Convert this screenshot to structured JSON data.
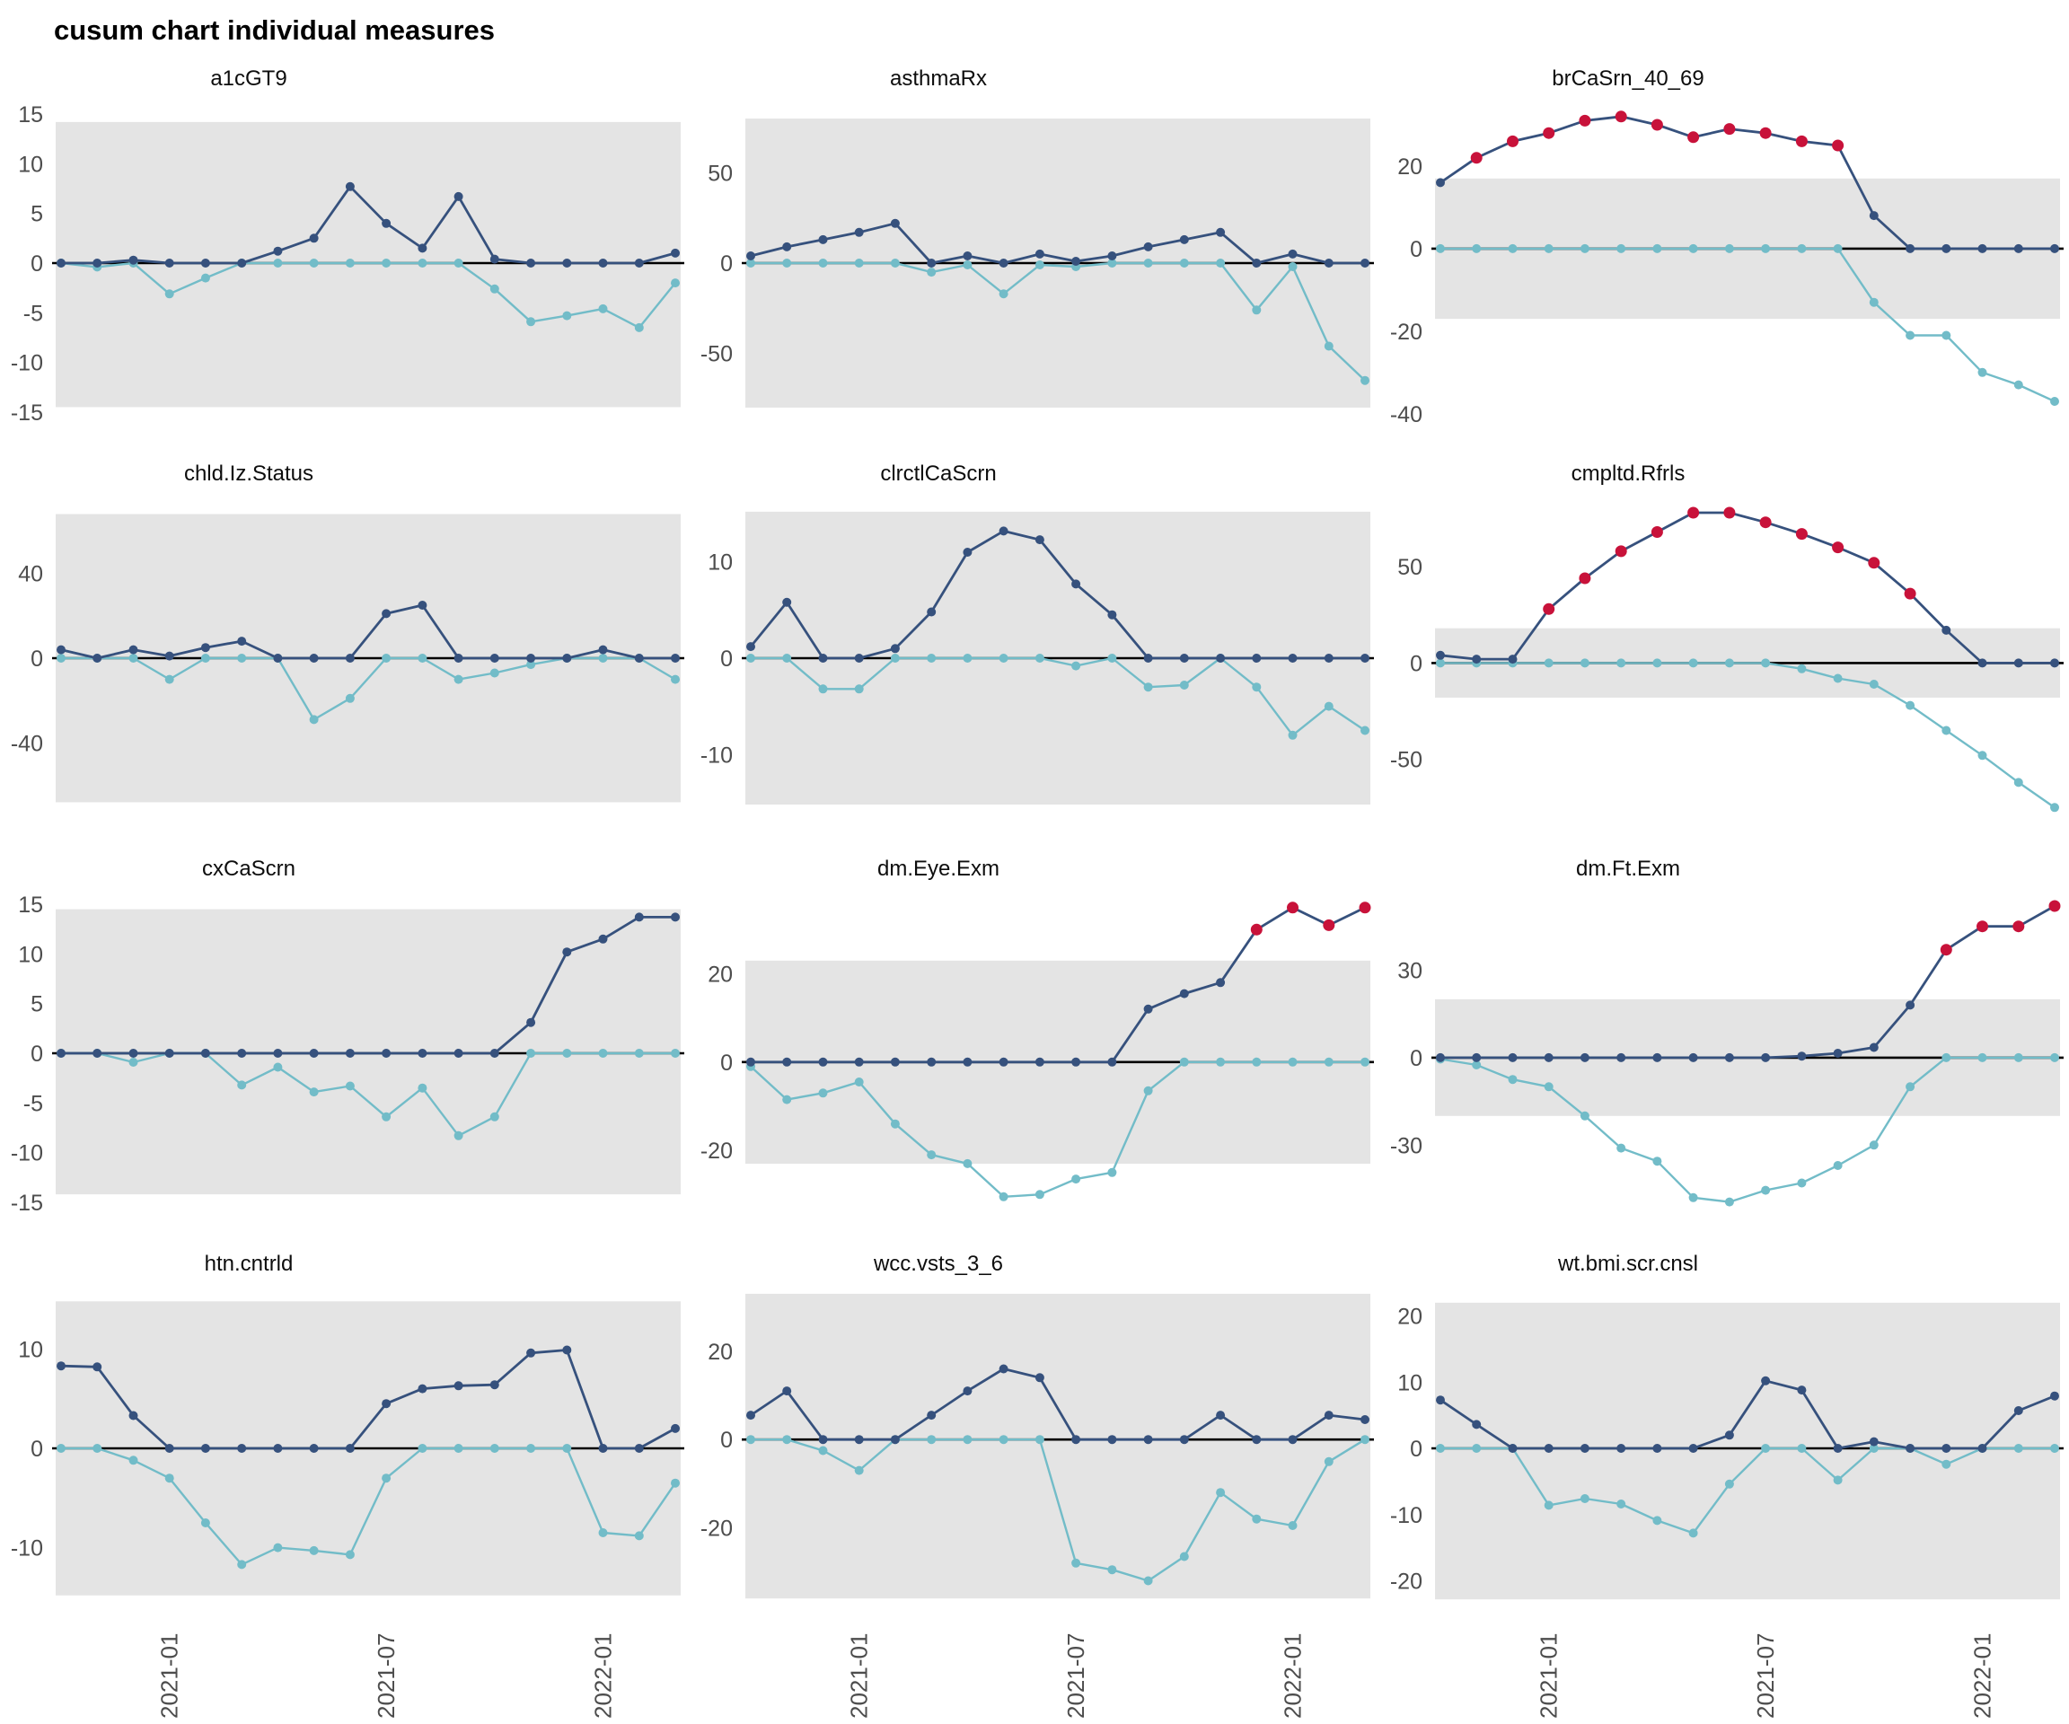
{
  "figure": {
    "title": "cusum chart  individual measures"
  },
  "axes": {
    "x_tick_labels": [
      "2021-01",
      "2021-07",
      "2022-01"
    ],
    "x_tick_indices": [
      3,
      9,
      15
    ],
    "n_points": 18
  },
  "colors": {
    "upper_line": "#36517d",
    "lower_line": "#72bcc8",
    "signal": "#c8123a",
    "band": "#e4e4e4",
    "zero_line": "#000000",
    "tick_text": "#4d4d4d",
    "title_text": "#0d0d0d"
  },
  "chart_data": [
    {
      "type": "line",
      "title": "a1cGT9",
      "yticks": [
        15,
        10,
        5,
        0,
        -5,
        -10,
        -15
      ],
      "ylim": [
        -16,
        16
      ],
      "band": [
        -14.5,
        14.2
      ],
      "series": [
        {
          "name": "positive cusum",
          "values": [
            0,
            0,
            0.3,
            0,
            0,
            0,
            1.2,
            2.5,
            7.7,
            4.0,
            1.5,
            6.7,
            0.4,
            0,
            0,
            0,
            0,
            1.0
          ],
          "signal_indices": []
        },
        {
          "name": "negative cusum",
          "values": [
            0,
            -0.4,
            0,
            -3.1,
            -1.5,
            0,
            0,
            0,
            0,
            0,
            0,
            0,
            -2.6,
            -5.9,
            -5.3,
            -4.6,
            -6.5,
            -2.0
          ],
          "signal_indices": []
        }
      ]
    },
    {
      "type": "line",
      "title": "asthmaRx",
      "yticks": [
        50,
        0,
        -50
      ],
      "ylim": [
        -88,
        88
      ],
      "band": [
        -80,
        80
      ],
      "series": [
        {
          "name": "positive cusum",
          "values": [
            4,
            9,
            13,
            17,
            22,
            0,
            4,
            0,
            5,
            1,
            4,
            9,
            13,
            17,
            0,
            5,
            0,
            0
          ],
          "signal_indices": []
        },
        {
          "name": "negative cusum",
          "values": [
            0,
            0,
            0,
            0,
            0,
            -5,
            -1,
            -17,
            -1,
            -2,
            0,
            0,
            0,
            0,
            -26,
            -2,
            -46,
            -65
          ],
          "signal_indices": []
        }
      ]
    },
    {
      "type": "line",
      "title": "brCaSrn_40_69",
      "yticks": [
        20,
        0,
        -20,
        -40
      ],
      "ylim": [
        -42,
        35
      ],
      "band": [
        -17,
        17
      ],
      "series": [
        {
          "name": "positive cusum",
          "values": [
            16,
            22,
            26,
            28,
            31,
            32,
            30,
            27,
            29,
            28,
            26,
            25,
            8,
            0,
            0,
            0,
            0,
            0
          ],
          "signal_indices": [
            1,
            2,
            3,
            4,
            5,
            6,
            7,
            8,
            9,
            10,
            11
          ]
        },
        {
          "name": "negative cusum",
          "values": [
            0,
            0,
            0,
            0,
            0,
            0,
            0,
            0,
            0,
            0,
            0,
            0,
            -13,
            -21,
            -21,
            -30,
            -33,
            -37
          ],
          "signal_indices": []
        }
      ]
    },
    {
      "type": "line",
      "title": "chld.Iz.Status",
      "yticks": [
        40,
        0,
        -40
      ],
      "ylim": [
        -75,
        75
      ],
      "band": [
        -68,
        68
      ],
      "series": [
        {
          "name": "positive cusum",
          "values": [
            4,
            0,
            4,
            1,
            5,
            8,
            0,
            0,
            0,
            21,
            25,
            0,
            0,
            0,
            0,
            4,
            0,
            0
          ],
          "signal_indices": []
        },
        {
          "name": "negative cusum",
          "values": [
            0,
            0,
            0,
            -10,
            0,
            0,
            0,
            -29,
            -19,
            0,
            0,
            -10,
            -7,
            -3,
            0,
            0,
            0,
            -10
          ],
          "signal_indices": []
        }
      ]
    },
    {
      "type": "line",
      "title": "clrctlCaScrn",
      "yticks": [
        10,
        0,
        -10
      ],
      "ylim": [
        -16.5,
        16.5
      ],
      "band": [
        -15.2,
        15.2
      ],
      "series": [
        {
          "name": "positive cusum",
          "values": [
            1.2,
            5.8,
            0,
            0,
            1.0,
            4.8,
            11.0,
            13.2,
            12.3,
            7.7,
            4.5,
            0,
            0,
            0,
            0,
            0,
            0,
            0
          ],
          "signal_indices": []
        },
        {
          "name": "negative cusum",
          "values": [
            0,
            0,
            -3.2,
            -3.2,
            0,
            0,
            0,
            0,
            0,
            -0.8,
            0,
            -3.0,
            -2.8,
            0,
            -3.0,
            -8.0,
            -5.0,
            -7.5
          ],
          "signal_indices": []
        }
      ]
    },
    {
      "type": "line",
      "title": "cmpltd.Rfrls",
      "yticks": [
        50,
        0,
        -50
      ],
      "ylim": [
        -80,
        85
      ],
      "band": [
        -18,
        18
      ],
      "series": [
        {
          "name": "positive cusum",
          "values": [
            4,
            2,
            2,
            28,
            44,
            58,
            68,
            78,
            78,
            73,
            67,
            60,
            52,
            36,
            17,
            0,
            0,
            0
          ],
          "signal_indices": [
            3,
            4,
            5,
            6,
            7,
            8,
            9,
            10,
            11,
            12,
            13
          ]
        },
        {
          "name": "negative cusum",
          "values": [
            0,
            0,
            0,
            0,
            0,
            0,
            0,
            0,
            0,
            0,
            -3,
            -8,
            -11,
            -22,
            -35,
            -48,
            -62,
            -75
          ],
          "signal_indices": []
        }
      ]
    },
    {
      "type": "line",
      "title": "cxCaScrn",
      "yticks": [
        15,
        10,
        5,
        0,
        -5,
        -10,
        -15
      ],
      "ylim": [
        -16,
        16
      ],
      "band": [
        -14.2,
        14.5
      ],
      "series": [
        {
          "name": "positive cusum",
          "values": [
            0,
            0,
            0,
            0,
            0,
            0,
            0,
            0,
            0,
            0,
            0,
            0,
            0,
            3.1,
            10.2,
            11.5,
            13.7,
            13.7
          ],
          "signal_indices": []
        },
        {
          "name": "negative cusum",
          "values": [
            0,
            0,
            -0.9,
            0,
            0,
            -3.2,
            -1.4,
            -3.9,
            -3.3,
            -6.4,
            -3.5,
            -8.3,
            -6.4,
            0,
            0,
            0,
            0,
            0
          ],
          "signal_indices": []
        }
      ]
    },
    {
      "type": "line",
      "title": "dm.Eye.Exm",
      "yticks": [
        20,
        0,
        -20
      ],
      "ylim": [
        -34,
        38
      ],
      "band": [
        -23,
        23
      ],
      "series": [
        {
          "name": "positive cusum",
          "values": [
            0,
            0,
            0,
            0,
            0,
            0,
            0,
            0,
            0,
            0,
            0,
            12,
            15.5,
            18,
            30,
            35,
            31,
            35
          ],
          "signal_indices": [
            14,
            15,
            16,
            17
          ]
        },
        {
          "name": "negative cusum",
          "values": [
            -1,
            -8.5,
            -7,
            -4.5,
            -14,
            -21,
            -23,
            -30.5,
            -30,
            -26.5,
            -25,
            -6.5,
            0,
            0,
            0,
            0,
            0,
            0
          ],
          "signal_indices": []
        }
      ]
    },
    {
      "type": "line",
      "title": "dm.Ft.Exm",
      "yticks": [
        30,
        0,
        -30
      ],
      "ylim": [
        -53,
        56
      ],
      "band": [
        -20,
        20
      ],
      "series": [
        {
          "name": "positive cusum",
          "values": [
            0,
            0,
            0,
            0,
            0,
            0,
            0,
            0,
            0,
            0,
            0.5,
            1.5,
            3.5,
            18,
            37,
            45,
            45,
            52
          ],
          "signal_indices": [
            14,
            15,
            16,
            17
          ]
        },
        {
          "name": "negative cusum",
          "values": [
            -0.5,
            -2.5,
            -7.5,
            -10,
            -20,
            -31,
            -35.5,
            -48,
            -49.5,
            -45.5,
            -43,
            -37,
            -30,
            -10,
            0,
            0,
            0,
            0
          ],
          "signal_indices": []
        }
      ]
    },
    {
      "type": "line",
      "title": "htn.cntrld",
      "yticks": [
        10,
        0,
        -10
      ],
      "ylim": [
        -16,
        16
      ],
      "band": [
        -14.8,
        14.8
      ],
      "series": [
        {
          "name": "positive cusum",
          "values": [
            8.3,
            8.2,
            3.3,
            0,
            0,
            0,
            0,
            0,
            0,
            4.5,
            6.0,
            6.3,
            6.4,
            9.6,
            9.9,
            0,
            0,
            2.0
          ],
          "signal_indices": []
        },
        {
          "name": "negative cusum",
          "values": [
            0,
            0,
            -1.2,
            -3.0,
            -7.5,
            -11.7,
            -10.0,
            -10.3,
            -10.7,
            -3.0,
            0,
            0,
            0,
            0,
            0,
            -8.5,
            -8.8,
            -3.5
          ],
          "signal_indices": []
        }
      ]
    },
    {
      "type": "line",
      "title": "wcc.vsts_3_6",
      "yticks": [
        20,
        0,
        -20
      ],
      "ylim": [
        -38,
        34
      ],
      "band": [
        -36,
        33
      ],
      "series": [
        {
          "name": "positive cusum",
          "values": [
            5.5,
            11,
            0,
            0,
            0,
            5.5,
            11,
            16,
            14,
            0,
            0,
            0,
            0,
            5.5,
            0,
            0,
            5.5,
            4.5
          ],
          "signal_indices": []
        },
        {
          "name": "negative cusum",
          "values": [
            0,
            0,
            -2.5,
            -7,
            0,
            0,
            0,
            0,
            0,
            -28,
            -29.5,
            -32,
            -26.5,
            -12,
            -18,
            -19.5,
            -5,
            0
          ],
          "signal_indices": []
        }
      ]
    },
    {
      "type": "line",
      "title": "wt.bmi.scr.cnsl",
      "yticks": [
        20,
        10,
        0,
        -10,
        -20
      ],
      "ylim": [
        -24,
        24
      ],
      "band": [
        -22.8,
        22
      ],
      "series": [
        {
          "name": "positive cusum",
          "values": [
            7.3,
            3.6,
            0,
            0,
            0,
            0,
            0,
            0,
            2.0,
            10.2,
            8.8,
            0,
            1.0,
            0,
            0,
            0,
            5.7,
            7.9
          ],
          "signal_indices": []
        },
        {
          "name": "negative cusum",
          "values": [
            0,
            0,
            0,
            -8.6,
            -7.6,
            -8.4,
            -10.9,
            -12.8,
            -5.4,
            0,
            0,
            -4.8,
            0,
            0,
            -2.4,
            0,
            0,
            0
          ],
          "signal_indices": []
        }
      ]
    }
  ]
}
